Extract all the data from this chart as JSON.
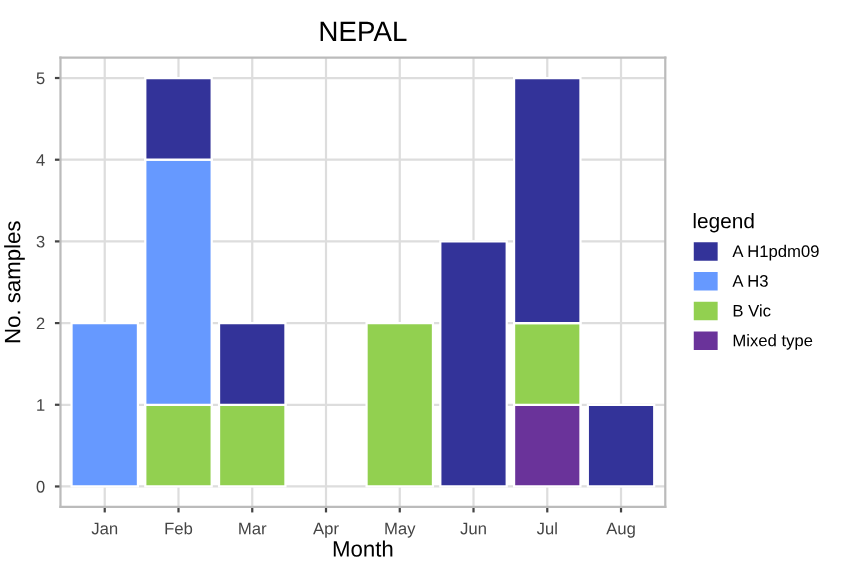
{
  "chart_data": {
    "type": "bar",
    "title": "NEPAL",
    "xlabel": "Month",
    "ylabel": "No. samples",
    "legend_title": "legend",
    "categories": [
      "Jan",
      "Feb",
      "Mar",
      "Apr",
      "May",
      "Jun",
      "Jul",
      "Aug"
    ],
    "stacked": true,
    "series": [
      {
        "name": "Mixed type",
        "color": "#6a339a",
        "values": [
          null,
          null,
          null,
          null,
          null,
          null,
          1,
          null
        ]
      },
      {
        "name": "B Vic",
        "color": "#92d050",
        "values": [
          null,
          1,
          1,
          null,
          2,
          null,
          1,
          null
        ]
      },
      {
        "name": "A H3",
        "color": "#6699ff",
        "values": [
          2,
          3,
          null,
          null,
          null,
          null,
          null,
          null
        ]
      },
      {
        "name": "A H1pdm09",
        "color": "#333399",
        "values": [
          null,
          1,
          1,
          null,
          null,
          3,
          3,
          1
        ]
      }
    ],
    "ylim": [
      -0.25,
      5.25
    ],
    "yticks": [
      0,
      1,
      2,
      3,
      4,
      5
    ],
    "grid": true,
    "legend": "right"
  }
}
